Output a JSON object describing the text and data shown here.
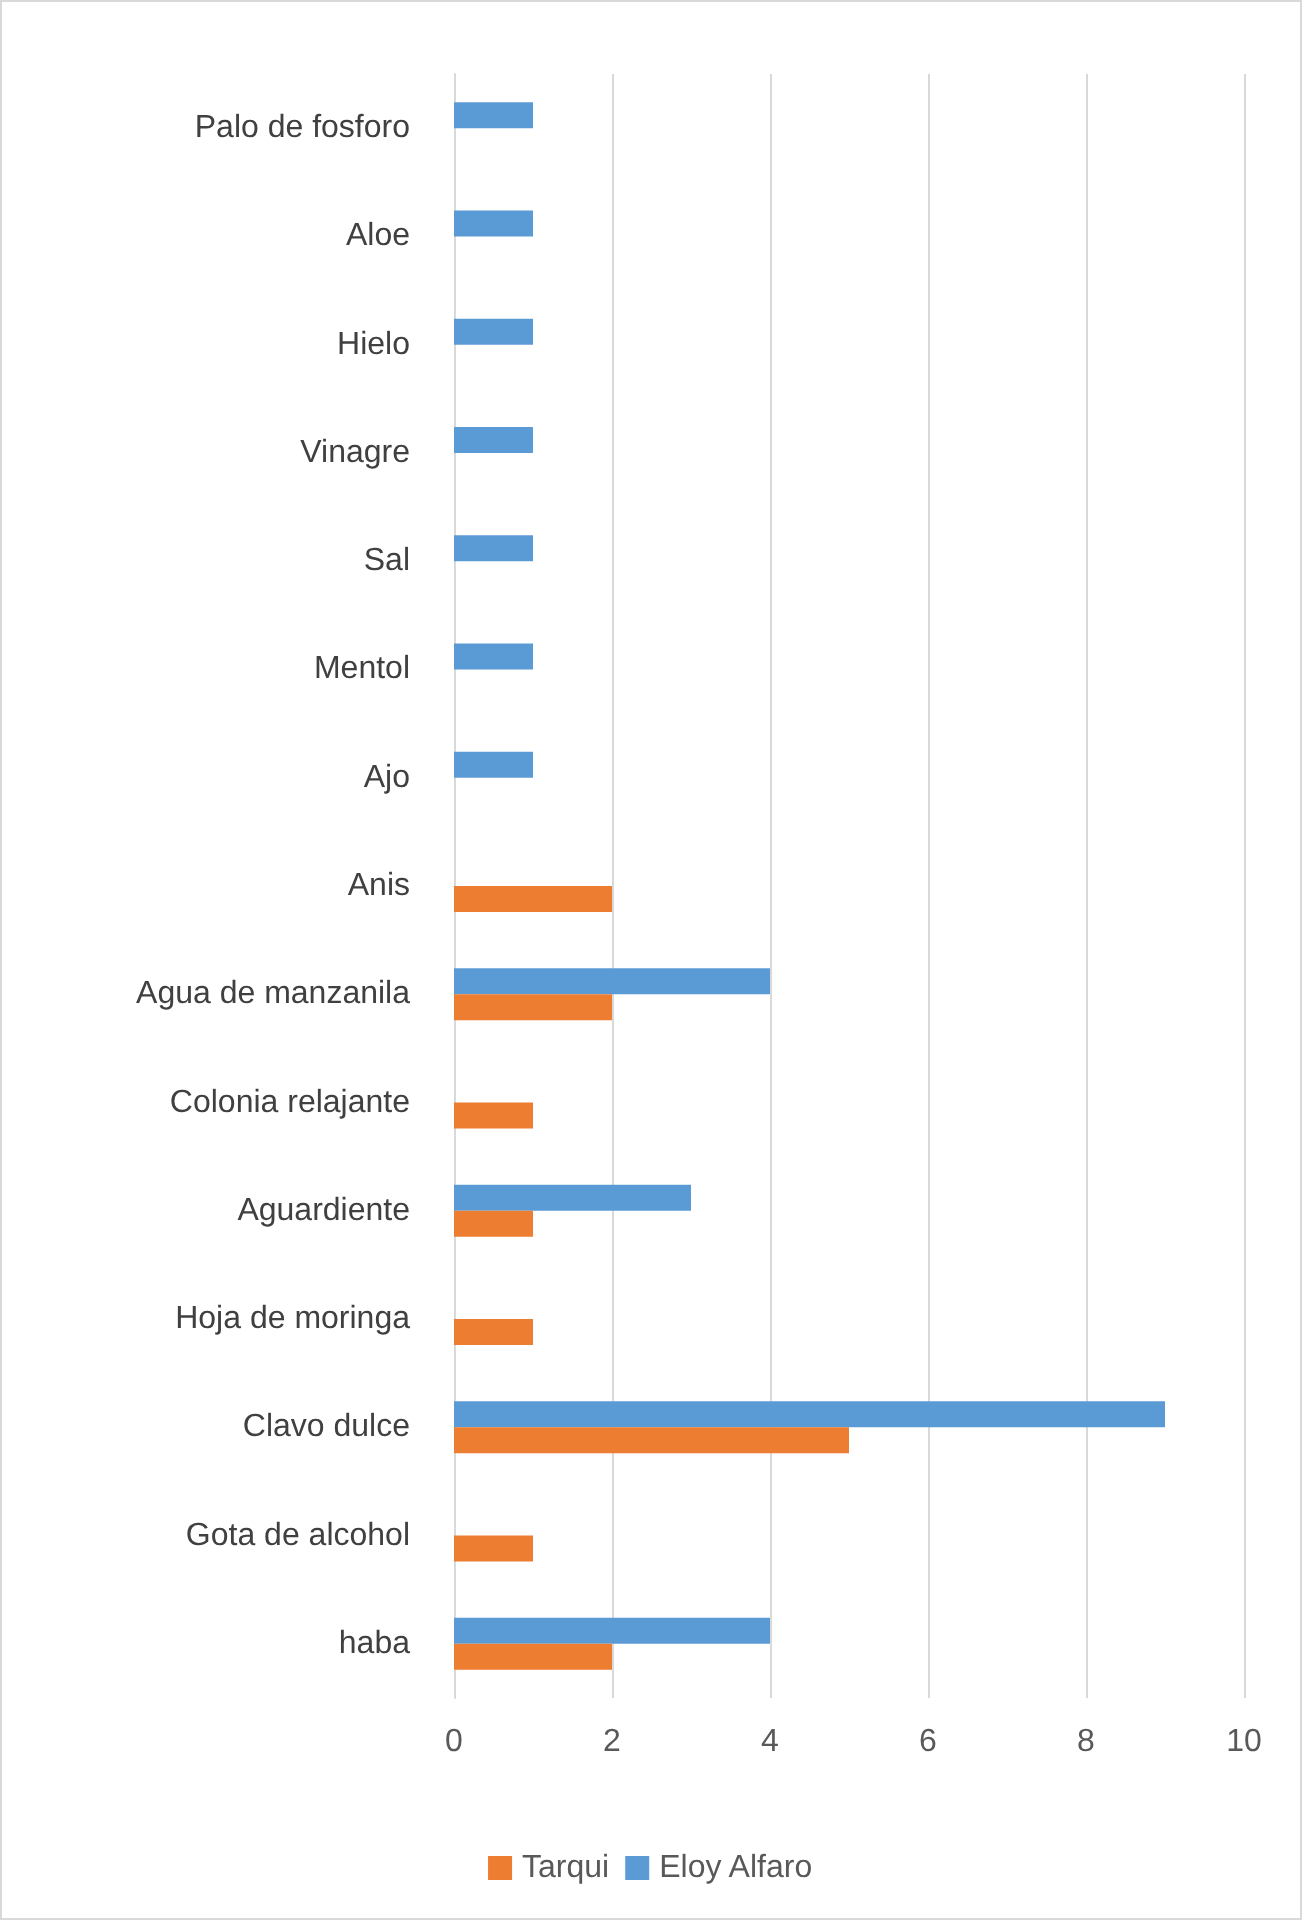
{
  "chart_data": {
    "type": "bar",
    "orientation": "horizontal",
    "categories": [
      "Palo de fosforo",
      "Aloe",
      "Hielo",
      "Vinagre",
      "Sal",
      "Mentol",
      "Ajo",
      "Anis",
      "Agua de manzanila",
      "Colonia relajante",
      "Aguardiente",
      "Hoja de moringa",
      "Clavo dulce",
      "Gota de alcohol",
      "haba"
    ],
    "series": [
      {
        "name": "Tarqui",
        "color": "#ed7d31",
        "values": [
          null,
          null,
          null,
          null,
          null,
          null,
          null,
          2,
          2,
          1,
          1,
          1,
          5,
          1,
          2
        ]
      },
      {
        "name": "Eloy Alfaro",
        "color": "#5b9bd5",
        "values": [
          1,
          1,
          1,
          1,
          1,
          1,
          1,
          null,
          4,
          null,
          3,
          null,
          9,
          null,
          4
        ]
      }
    ],
    "xlim": [
      0,
      10
    ],
    "xticks": [
      0,
      2,
      4,
      6,
      8,
      10
    ],
    "grid": "x",
    "legend": "bottom"
  }
}
